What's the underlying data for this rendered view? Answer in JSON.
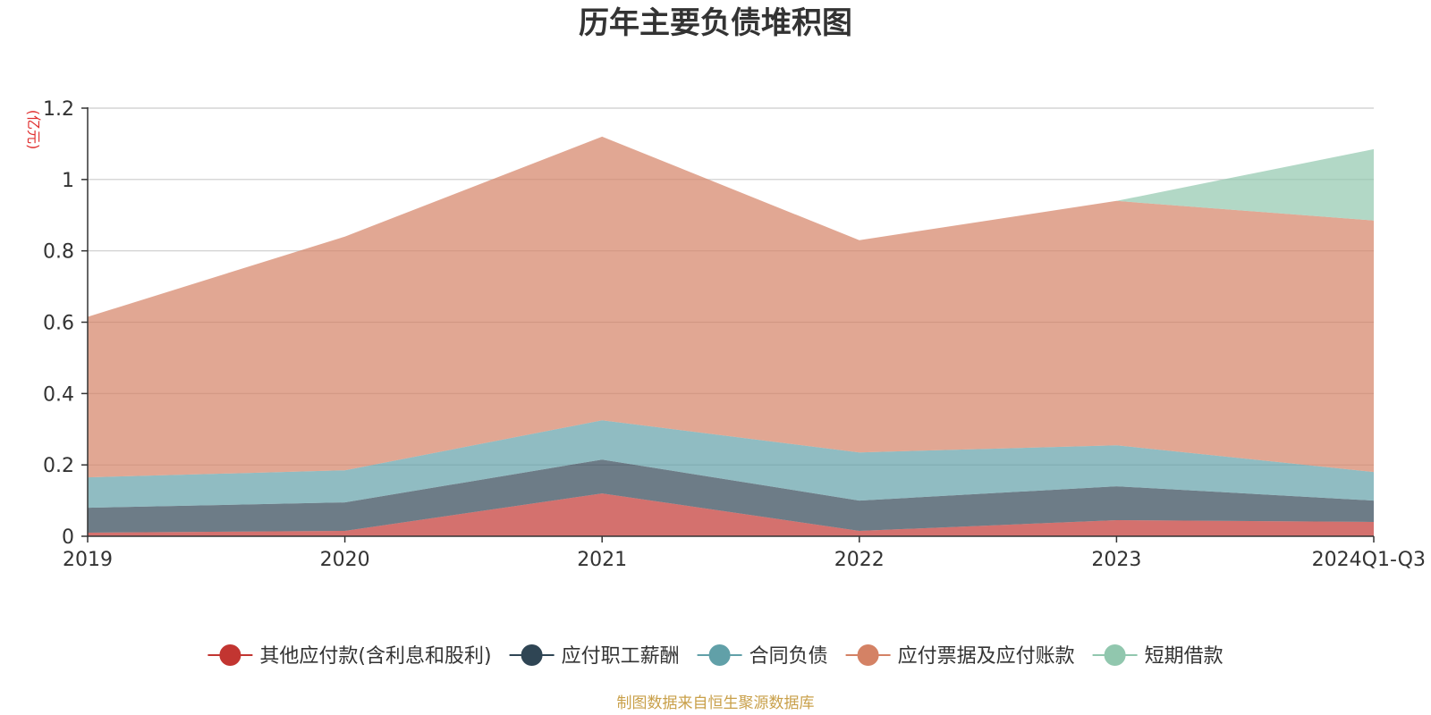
{
  "chart_data": {
    "type": "area",
    "stacked": true,
    "title": "历年主要负债堆积图",
    "y_unit": "(亿元)",
    "categories": [
      "2019",
      "2020",
      "2021",
      "2022",
      "2023",
      "2024Q1-Q3"
    ],
    "ylim": [
      0,
      1.2
    ],
    "yticks": [
      0,
      0.2,
      0.4,
      0.6,
      0.8,
      1,
      1.2
    ],
    "ytick_labels": [
      "0",
      "0.2",
      "0.4",
      "0.6",
      "0.8",
      "1",
      "1.2"
    ],
    "grid": true,
    "legend_position": "bottom",
    "series": [
      {
        "name": "其他应付款(含利息和股利)",
        "color": "#c23531",
        "values": [
          0.01,
          0.015,
          0.12,
          0.015,
          0.045,
          0.04
        ]
      },
      {
        "name": "应付职工薪酬",
        "color": "#2f4554",
        "values": [
          0.07,
          0.08,
          0.095,
          0.085,
          0.095,
          0.06
        ]
      },
      {
        "name": "合同负债",
        "color": "#61a0a8",
        "values": [
          0.085,
          0.09,
          0.11,
          0.135,
          0.115,
          0.08
        ]
      },
      {
        "name": "应付票据及应付账款",
        "color": "#d48265",
        "values": [
          0.45,
          0.655,
          0.795,
          0.595,
          0.685,
          0.705
        ]
      },
      {
        "name": "短期借款",
        "color": "#91c7ae",
        "values": [
          0,
          0,
          0,
          0,
          0,
          0.2
        ]
      }
    ],
    "source_note": "制图数据来自恒生聚源数据库"
  }
}
